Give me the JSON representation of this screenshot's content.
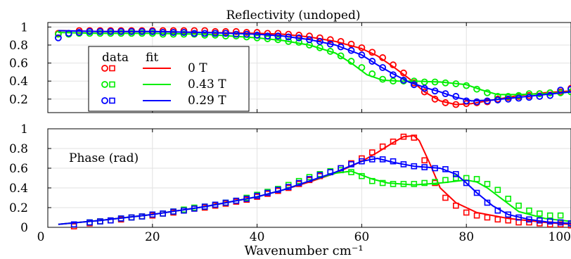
{
  "chart_data": [
    {
      "type": "scatter",
      "title": "Reflectivity (undoped)",
      "xlim": [
        0,
        100
      ],
      "ylim": [
        0.05,
        1.05
      ],
      "xticks": [
        0,
        20,
        40,
        60,
        80,
        100
      ],
      "yticks": [
        0.2,
        0.4,
        0.6,
        0.8,
        1
      ],
      "ytick_labels": [
        "0.2",
        "0.4",
        "0.6",
        "0.8",
        "1"
      ],
      "grid": true,
      "legend": {
        "placement": "top-left",
        "header_data": "data",
        "header_fit": "fit",
        "entries": [
          "0 T",
          "0.43 T",
          "0.29 T"
        ]
      },
      "series": [
        {
          "name": "0 T",
          "color": "#ff0000",
          "data_x": [
            2,
            6,
            8,
            10,
            12,
            14,
            16,
            18,
            20,
            22,
            24,
            26,
            28,
            30,
            32,
            34,
            36,
            38,
            40,
            42,
            44,
            46,
            48,
            50,
            52,
            54,
            56,
            58,
            60,
            62,
            64,
            66,
            68,
            70,
            72,
            74,
            76,
            78,
            80,
            82,
            84,
            86,
            88,
            90,
            92,
            94,
            96,
            98,
            100
          ],
          "data_y": [
            0.93,
            0.96,
            0.96,
            0.96,
            0.96,
            0.96,
            0.96,
            0.96,
            0.96,
            0.96,
            0.96,
            0.96,
            0.96,
            0.96,
            0.95,
            0.95,
            0.95,
            0.94,
            0.94,
            0.93,
            0.93,
            0.92,
            0.91,
            0.9,
            0.88,
            0.86,
            0.84,
            0.81,
            0.77,
            0.72,
            0.66,
            0.58,
            0.49,
            0.38,
            0.28,
            0.2,
            0.16,
            0.14,
            0.15,
            0.16,
            0.17,
            0.2,
            0.22,
            0.23,
            0.24,
            0.26,
            0.27,
            0.28,
            0.32
          ],
          "fit_x": [
            2,
            10,
            20,
            30,
            40,
            45,
            50,
            55,
            60,
            63,
            66,
            69,
            72,
            75,
            78,
            81,
            85,
            90,
            95,
            100
          ],
          "fit_y": [
            0.96,
            0.95,
            0.95,
            0.94,
            0.93,
            0.92,
            0.89,
            0.84,
            0.76,
            0.68,
            0.56,
            0.43,
            0.28,
            0.18,
            0.14,
            0.15,
            0.19,
            0.24,
            0.27,
            0.29
          ]
        },
        {
          "name": "0.43 T",
          "color": "#00ee00",
          "data_x": [
            2,
            4,
            6,
            8,
            10,
            12,
            14,
            16,
            18,
            20,
            22,
            24,
            26,
            28,
            30,
            32,
            34,
            36,
            38,
            40,
            42,
            44,
            46,
            48,
            50,
            52,
            54,
            56,
            58,
            60,
            62,
            64,
            66,
            68,
            70,
            72,
            74,
            76,
            78,
            80,
            82,
            84,
            86,
            88,
            90,
            92,
            94,
            96,
            98,
            100
          ],
          "data_y": [
            0.92,
            0.92,
            0.93,
            0.93,
            0.93,
            0.93,
            0.93,
            0.93,
            0.93,
            0.93,
            0.92,
            0.92,
            0.92,
            0.92,
            0.91,
            0.91,
            0.9,
            0.9,
            0.89,
            0.88,
            0.87,
            0.86,
            0.84,
            0.83,
            0.8,
            0.77,
            0.73,
            0.68,
            0.62,
            0.55,
            0.48,
            0.42,
            0.4,
            0.4,
            0.4,
            0.39,
            0.39,
            0.38,
            0.37,
            0.35,
            0.31,
            0.27,
            0.23,
            0.23,
            0.24,
            0.26,
            0.26,
            0.27,
            0.27,
            0.28
          ],
          "fit_x": [
            2,
            10,
            20,
            30,
            40,
            45,
            50,
            55,
            58,
            61,
            64,
            67,
            70,
            75,
            80,
            83,
            86,
            90,
            95,
            100
          ],
          "fit_y": [
            0.94,
            0.93,
            0.93,
            0.92,
            0.88,
            0.85,
            0.8,
            0.71,
            0.6,
            0.47,
            0.41,
            0.4,
            0.4,
            0.39,
            0.36,
            0.3,
            0.25,
            0.25,
            0.26,
            0.28
          ]
        },
        {
          "name": "0.29 T",
          "color": "#0000ff",
          "data_x": [
            2,
            4,
            6,
            8,
            10,
            12,
            14,
            16,
            18,
            20,
            22,
            24,
            26,
            28,
            30,
            32,
            34,
            36,
            38,
            40,
            42,
            44,
            46,
            48,
            50,
            52,
            54,
            56,
            58,
            60,
            62,
            64,
            66,
            68,
            70,
            72,
            74,
            76,
            78,
            80,
            82,
            84,
            86,
            88,
            90,
            92,
            94,
            96,
            98,
            100
          ],
          "data_y": [
            0.88,
            0.93,
            0.94,
            0.95,
            0.95,
            0.95,
            0.95,
            0.95,
            0.95,
            0.95,
            0.94,
            0.94,
            0.94,
            0.93,
            0.93,
            0.93,
            0.93,
            0.92,
            0.92,
            0.91,
            0.9,
            0.9,
            0.89,
            0.88,
            0.86,
            0.84,
            0.81,
            0.78,
            0.74,
            0.69,
            0.62,
            0.55,
            0.47,
            0.41,
            0.36,
            0.32,
            0.29,
            0.26,
            0.23,
            0.18,
            0.17,
            0.18,
            0.19,
            0.2,
            0.21,
            0.22,
            0.23,
            0.24,
            0.3,
            0.31
          ],
          "fit_x": [
            2,
            10,
            20,
            30,
            40,
            45,
            50,
            55,
            60,
            63,
            66,
            69,
            72,
            75,
            78,
            81,
            85,
            90,
            95,
            100
          ],
          "fit_y": [
            0.96,
            0.95,
            0.95,
            0.94,
            0.92,
            0.9,
            0.86,
            0.8,
            0.69,
            0.58,
            0.48,
            0.39,
            0.33,
            0.28,
            0.22,
            0.18,
            0.19,
            0.22,
            0.25,
            0.28
          ]
        }
      ]
    },
    {
      "type": "scatter",
      "annotation": "Phase (rad)",
      "xlabel": "Wavenumber cm⁻¹",
      "xlim": [
        0,
        100
      ],
      "ylim": [
        0,
        1.0
      ],
      "xticks": [
        0,
        20,
        40,
        60,
        80,
        100
      ],
      "xtick_labels": [
        "0",
        "20",
        "40",
        "60",
        "80",
        "100"
      ],
      "yticks": [
        0,
        0.2,
        0.4,
        0.6,
        0.8,
        1
      ],
      "ytick_labels": [
        "0",
        "0.2",
        "0.4",
        "0.6",
        "0.8",
        "1"
      ],
      "grid": true,
      "series": [
        {
          "name": "0 T",
          "color": "#ff0000",
          "data_x": [
            5,
            8,
            10,
            12,
            14,
            16,
            18,
            20,
            22,
            24,
            26,
            28,
            30,
            32,
            34,
            36,
            38,
            40,
            42,
            44,
            46,
            48,
            50,
            52,
            54,
            56,
            58,
            60,
            62,
            64,
            66,
            68,
            70,
            72,
            74,
            76,
            78,
            80,
            82,
            84,
            86,
            88,
            90,
            92,
            94,
            96,
            98,
            100
          ],
          "data_y": [
            0.01,
            0.04,
            0.06,
            0.07,
            0.08,
            0.1,
            0.11,
            0.12,
            0.14,
            0.15,
            0.17,
            0.19,
            0.2,
            0.22,
            0.24,
            0.26,
            0.28,
            0.31,
            0.34,
            0.37,
            0.4,
            0.44,
            0.48,
            0.52,
            0.56,
            0.6,
            0.65,
            0.7,
            0.76,
            0.82,
            0.87,
            0.92,
            0.91,
            0.68,
            0.45,
            0.3,
            0.22,
            0.15,
            0.12,
            0.1,
            0.08,
            0.07,
            0.05,
            0.05,
            0.04,
            0.03,
            0.03,
            0.02
          ],
          "fit_x": [
            2,
            10,
            20,
            30,
            40,
            45,
            50,
            55,
            60,
            63,
            66,
            68,
            70,
            71,
            73,
            75,
            78,
            82,
            88,
            95,
            100
          ],
          "fit_y": [
            0.03,
            0.07,
            0.13,
            0.21,
            0.31,
            0.38,
            0.46,
            0.55,
            0.67,
            0.76,
            0.86,
            0.92,
            0.93,
            0.88,
            0.65,
            0.4,
            0.25,
            0.15,
            0.09,
            0.05,
            0.03
          ]
        },
        {
          "name": "0.43 T",
          "color": "#00ee00",
          "data_x": [
            5,
            8,
            10,
            12,
            14,
            16,
            18,
            20,
            22,
            24,
            26,
            28,
            30,
            32,
            34,
            36,
            38,
            40,
            42,
            44,
            46,
            48,
            50,
            52,
            54,
            56,
            58,
            60,
            62,
            64,
            66,
            68,
            70,
            72,
            74,
            76,
            78,
            80,
            82,
            84,
            86,
            88,
            90,
            92,
            94,
            96,
            98,
            100
          ],
          "data_y": [
            0.03,
            0.05,
            0.06,
            0.07,
            0.09,
            0.1,
            0.11,
            0.13,
            0.14,
            0.16,
            0.18,
            0.2,
            0.21,
            0.23,
            0.25,
            0.27,
            0.3,
            0.33,
            0.36,
            0.39,
            0.43,
            0.47,
            0.51,
            0.54,
            0.57,
            0.58,
            0.56,
            0.52,
            0.47,
            0.45,
            0.44,
            0.44,
            0.44,
            0.45,
            0.46,
            0.48,
            0.5,
            0.5,
            0.49,
            0.44,
            0.38,
            0.29,
            0.22,
            0.17,
            0.14,
            0.12,
            0.12,
            0.04
          ],
          "fit_x": [
            2,
            10,
            20,
            30,
            40,
            45,
            50,
            55,
            58,
            60,
            62,
            65,
            70,
            75,
            80,
            82,
            84,
            87,
            90,
            95,
            100
          ],
          "fit_y": [
            0.03,
            0.07,
            0.13,
            0.21,
            0.31,
            0.38,
            0.47,
            0.55,
            0.57,
            0.53,
            0.49,
            0.45,
            0.43,
            0.45,
            0.48,
            0.46,
            0.4,
            0.28,
            0.16,
            0.09,
            0.06
          ]
        },
        {
          "name": "0.29 T",
          "color": "#0000ff",
          "data_x": [
            5,
            8,
            10,
            12,
            14,
            16,
            18,
            20,
            22,
            24,
            26,
            28,
            30,
            32,
            34,
            36,
            38,
            40,
            42,
            44,
            46,
            48,
            50,
            52,
            54,
            56,
            58,
            60,
            62,
            64,
            66,
            68,
            70,
            72,
            74,
            76,
            78,
            80,
            82,
            84,
            86,
            88,
            90,
            92,
            94,
            96,
            98,
            100
          ],
          "data_y": [
            0.03,
            0.05,
            0.06,
            0.07,
            0.09,
            0.1,
            0.11,
            0.13,
            0.14,
            0.16,
            0.17,
            0.19,
            0.21,
            0.23,
            0.25,
            0.27,
            0.29,
            0.32,
            0.35,
            0.38,
            0.41,
            0.45,
            0.49,
            0.53,
            0.56,
            0.6,
            0.64,
            0.67,
            0.69,
            0.69,
            0.67,
            0.64,
            0.62,
            0.61,
            0.6,
            0.59,
            0.54,
            0.45,
            0.35,
            0.25,
            0.17,
            0.13,
            0.1,
            0.08,
            0.07,
            0.06,
            0.05,
            0.04
          ],
          "fit_x": [
            2,
            10,
            20,
            30,
            40,
            45,
            50,
            55,
            60,
            63,
            66,
            70,
            75,
            78,
            80,
            82,
            85,
            88,
            92,
            96,
            100
          ],
          "fit_y": [
            0.03,
            0.07,
            0.13,
            0.21,
            0.31,
            0.38,
            0.47,
            0.56,
            0.67,
            0.7,
            0.66,
            0.62,
            0.6,
            0.54,
            0.45,
            0.35,
            0.22,
            0.13,
            0.08,
            0.05,
            0.04
          ]
        }
      ]
    }
  ]
}
